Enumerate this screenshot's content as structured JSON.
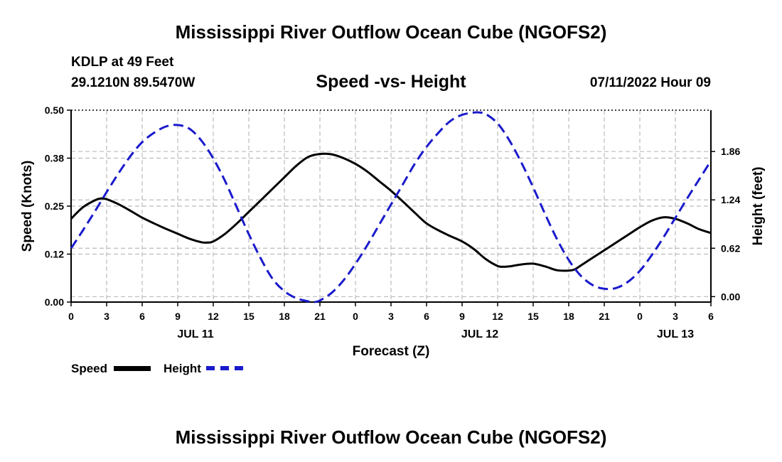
{
  "header": {
    "title": "Mississippi River Outflow Ocean Cube (NGOFS2)",
    "station": "KDLP at 49 Feet",
    "coords": "29.1210N  89.5470W",
    "subtitle": "Speed -vs- Height",
    "datetime": "07/11/2022 Hour 09"
  },
  "footer": {
    "title": "Mississippi River Outflow Ocean Cube (NGOFS2)"
  },
  "legend": {
    "speed_label": "Speed",
    "height_label": "Height"
  },
  "colors": {
    "speed": "#000000",
    "height": "#1a1acc",
    "grid": "#bbbbbb"
  },
  "chart_data": {
    "type": "line",
    "title": "Speed -vs- Height",
    "xlabel": "Forecast (Z)",
    "ylabel": "Speed (Knots)",
    "y2label": "Height (feet)",
    "xlim": [
      0,
      54
    ],
    "ylim": [
      0,
      0.5
    ],
    "y2lim": [
      -0.07,
      2.39
    ],
    "x_ticks": [
      0,
      3,
      6,
      9,
      12,
      15,
      18,
      21,
      24,
      27,
      30,
      33,
      36,
      39,
      42,
      45,
      48,
      51,
      54
    ],
    "x_tick_labels": [
      "0",
      "3",
      "6",
      "9",
      "12",
      "15",
      "18",
      "21",
      "0",
      "3",
      "6",
      "9",
      "12",
      "15",
      "18",
      "21",
      "0",
      "3",
      "6"
    ],
    "date_labels": [
      {
        "x": 10.5,
        "label": "JUL 11"
      },
      {
        "x": 34.5,
        "label": "JUL 12"
      },
      {
        "x": 51,
        "label": "JUL 13"
      }
    ],
    "y_ticks": [
      0.0,
      0.125,
      0.25,
      0.375,
      0.5
    ],
    "y_tick_labels": [
      "0.00",
      "0.12",
      "0.25",
      "0.38",
      "0.50"
    ],
    "y2_ticks": [
      0.0,
      0.62,
      1.24,
      1.86
    ],
    "y2_tick_labels": [
      "0.00",
      "0.62",
      "1.24",
      "1.86"
    ],
    "grid": true,
    "series": [
      {
        "name": "Speed",
        "axis": "left",
        "style": "solid",
        "x": [
          0,
          1,
          2,
          2.5,
          3,
          4,
          5,
          6,
          7,
          8,
          9,
          10,
          11,
          11.5,
          12,
          13,
          14,
          15,
          16,
          17,
          18,
          19,
          20,
          21,
          22,
          23,
          24,
          25,
          26,
          27,
          28,
          29,
          30,
          31,
          32,
          33,
          34,
          35,
          36,
          36.5,
          37,
          38,
          39,
          40,
          41,
          42,
          42.5,
          43,
          44,
          45,
          46,
          47,
          48,
          49,
          50,
          51,
          52,
          53,
          54
        ],
        "values": [
          0.217,
          0.247,
          0.265,
          0.27,
          0.268,
          0.255,
          0.238,
          0.22,
          0.205,
          0.191,
          0.178,
          0.165,
          0.156,
          0.155,
          0.158,
          0.178,
          0.205,
          0.235,
          0.265,
          0.295,
          0.325,
          0.355,
          0.378,
          0.386,
          0.385,
          0.375,
          0.36,
          0.34,
          0.315,
          0.29,
          0.262,
          0.233,
          0.205,
          0.187,
          0.172,
          0.158,
          0.138,
          0.112,
          0.094,
          0.092,
          0.093,
          0.098,
          0.1,
          0.093,
          0.083,
          0.082,
          0.085,
          0.095,
          0.115,
          0.135,
          0.155,
          0.175,
          0.195,
          0.212,
          0.221,
          0.217,
          0.205,
          0.19,
          0.18
        ]
      },
      {
        "name": "Height",
        "axis": "right",
        "style": "dashed",
        "x": [
          0,
          1,
          2,
          3,
          4,
          5,
          6,
          7,
          8,
          9,
          10,
          11,
          12,
          13,
          14,
          15,
          16,
          17,
          18,
          19,
          20,
          20.5,
          21,
          22,
          23,
          24,
          25,
          26,
          27,
          28,
          29,
          30,
          31,
          32,
          33,
          34,
          34.5,
          35,
          36,
          37,
          38,
          39,
          40,
          41,
          42,
          43,
          44,
          45,
          46,
          47,
          48,
          49,
          50,
          51,
          52,
          53,
          54
        ],
        "values": [
          0.62,
          0.85,
          1.09,
          1.34,
          1.58,
          1.8,
          1.98,
          2.1,
          2.18,
          2.2,
          2.15,
          2.0,
          1.77,
          1.48,
          1.14,
          0.8,
          0.49,
          0.23,
          0.07,
          -0.02,
          -0.06,
          -0.07,
          -0.05,
          0.05,
          0.21,
          0.42,
          0.66,
          0.92,
          1.18,
          1.44,
          1.7,
          1.92,
          2.1,
          2.25,
          2.33,
          2.36,
          2.36,
          2.34,
          2.22,
          2.0,
          1.72,
          1.4,
          1.06,
          0.74,
          0.47,
          0.27,
          0.15,
          0.1,
          0.11,
          0.19,
          0.33,
          0.53,
          0.76,
          1.01,
          1.26,
          1.5,
          1.74
        ]
      }
    ]
  }
}
